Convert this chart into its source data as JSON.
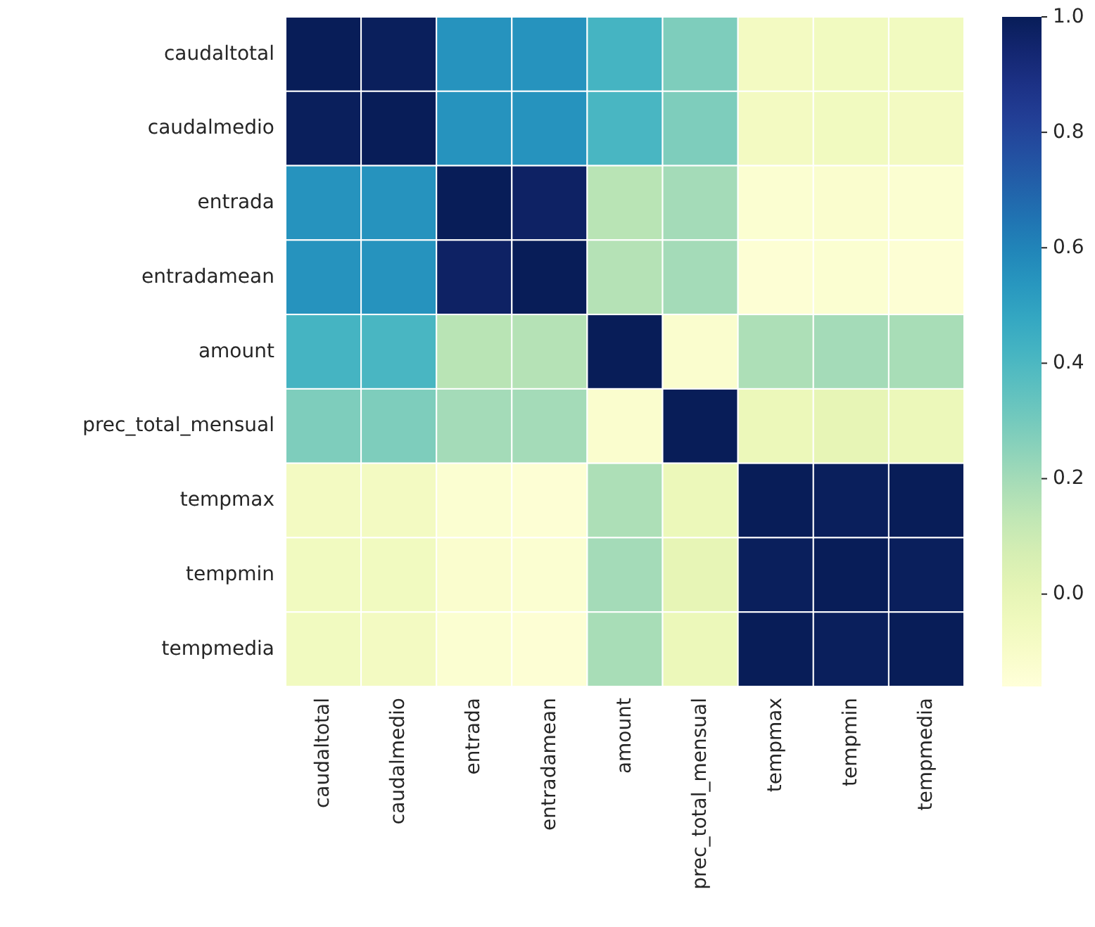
{
  "chart_data": {
    "type": "heatmap",
    "categories": [
      "caudaltotal",
      "caudalmedio",
      "entrada",
      "entradamean",
      "amount",
      "prec_total_mensual",
      "tempmax",
      "tempmin",
      "tempmedia"
    ],
    "y_categories": [
      "caudaltotal",
      "caudalmedio",
      "entrada",
      "entradamean",
      "amount",
      "prec_total_mensual",
      "tempmax",
      "tempmin",
      "tempmedia"
    ],
    "cells": [
      [
        1,
        0.99,
        0.55,
        0.55,
        0.42,
        0.28,
        -0.07,
        -0.06,
        -0.06
      ],
      [
        0.99,
        1,
        0.55,
        0.55,
        0.41,
        0.28,
        -0.07,
        -0.06,
        -0.07
      ],
      [
        0.55,
        0.55,
        1,
        0.97,
        0.15,
        0.2,
        -0.13,
        -0.12,
        -0.13
      ],
      [
        0.55,
        0.55,
        0.97,
        1,
        0.16,
        0.2,
        -0.14,
        -0.13,
        -0.14
      ],
      [
        0.42,
        0.41,
        0.15,
        0.16,
        1,
        -0.12,
        0.18,
        0.2,
        0.19
      ],
      [
        0.28,
        0.28,
        0.2,
        0.2,
        -0.12,
        1,
        -0.03,
        0,
        -0.03
      ],
      [
        -0.07,
        -0.07,
        -0.13,
        -0.14,
        0.18,
        -0.03,
        1,
        0.99,
        1
      ],
      [
        -0.06,
        -0.06,
        -0.12,
        -0.13,
        0.2,
        0,
        0.99,
        1,
        0.99
      ],
      [
        -0.06,
        -0.07,
        -0.13,
        -0.14,
        0.19,
        -0.03,
        1,
        0.99,
        1
      ]
    ],
    "clim": [
      -0.16,
      1.0
    ],
    "cticks": [
      {
        "value": 0,
        "label": "0.0"
      },
      {
        "value": 0.2,
        "label": "0.2"
      },
      {
        "value": 0.4,
        "label": "0.4"
      },
      {
        "value": 0.6,
        "label": "0.6"
      },
      {
        "value": 0.8,
        "label": "0.8"
      },
      {
        "value": 1,
        "label": "1.0"
      }
    ]
  }
}
